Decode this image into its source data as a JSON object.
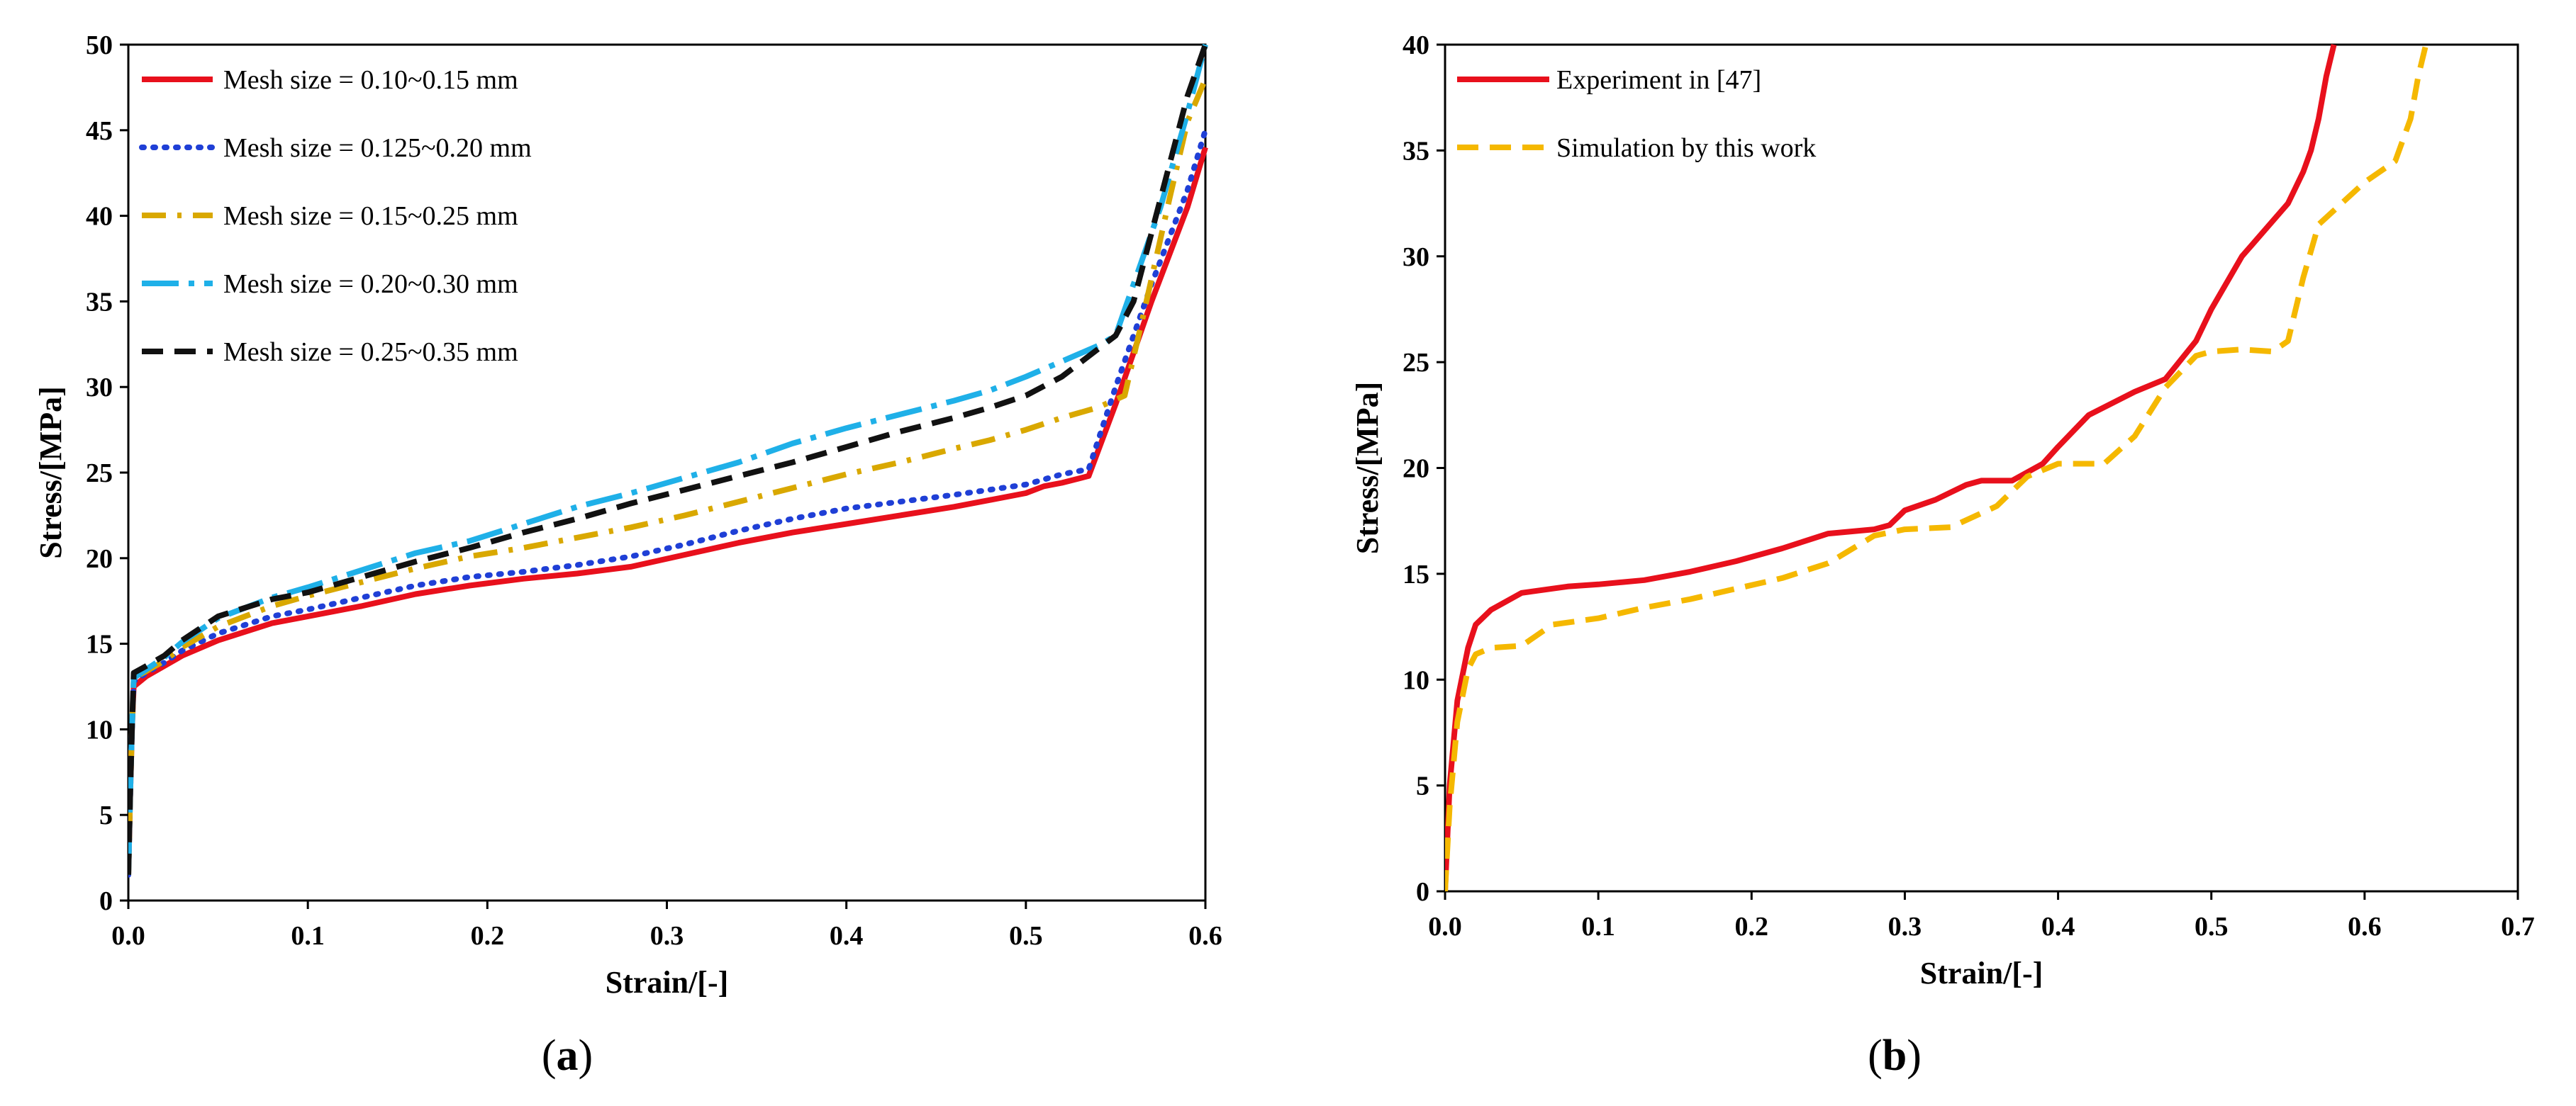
{
  "chart_data": [
    {
      "type": "line",
      "panel_label": "a",
      "caption_open": "(",
      "caption_close": ")",
      "xlabel": "Strain/[-]",
      "ylabel": "Stress/[MPa]",
      "xlim": [
        0,
        0.6
      ],
      "ylim": [
        0,
        50
      ],
      "xticks": [
        "0.0",
        "0.1",
        "0.2",
        "0.3",
        "0.4",
        "0.5",
        "0.6"
      ],
      "yticks": [
        "0",
        "5",
        "10",
        "15",
        "20",
        "25",
        "30",
        "35",
        "40",
        "45",
        "50"
      ],
      "legend_position": "top-left",
      "grid": false,
      "series": [
        {
          "name": "Mesh size = 0.10~0.15 mm",
          "color": "#e8101c",
          "style": "solid",
          "x": [
            0,
            0.001,
            0.002,
            0.003,
            0.01,
            0.02,
            0.03,
            0.05,
            0.08,
            0.1,
            0.13,
            0.16,
            0.19,
            0.22,
            0.25,
            0.28,
            0.31,
            0.34,
            0.37,
            0.4,
            0.43,
            0.46,
            0.48,
            0.5,
            0.51,
            0.52,
            0.535,
            0.55,
            0.57,
            0.59,
            0.6
          ],
          "y": [
            1.5,
            6,
            10,
            12.5,
            13.1,
            13.7,
            14.3,
            15.2,
            16.2,
            16.6,
            17.2,
            17.9,
            18.4,
            18.8,
            19.1,
            19.5,
            20.2,
            20.9,
            21.5,
            22.0,
            22.5,
            23.0,
            23.4,
            23.8,
            24.2,
            24.4,
            24.8,
            29,
            35,
            40.5,
            44
          ]
        },
        {
          "name": "Mesh size = 0.125~0.20 mm",
          "color": "#1f3fd6",
          "style": "dotted",
          "x": [
            0,
            0.001,
            0.002,
            0.003,
            0.01,
            0.02,
            0.03,
            0.05,
            0.08,
            0.1,
            0.13,
            0.16,
            0.19,
            0.22,
            0.25,
            0.28,
            0.31,
            0.34,
            0.37,
            0.4,
            0.43,
            0.46,
            0.48,
            0.5,
            0.51,
            0.52,
            0.535,
            0.55,
            0.57,
            0.59,
            0.6
          ],
          "y": [
            1.5,
            6,
            10,
            12.8,
            13.3,
            13.9,
            14.6,
            15.6,
            16.6,
            17.0,
            17.7,
            18.4,
            18.9,
            19.2,
            19.6,
            20.1,
            20.8,
            21.6,
            22.3,
            22.9,
            23.3,
            23.7,
            24.0,
            24.3,
            24.6,
            24.9,
            25.2,
            30,
            36,
            41.5,
            45
          ]
        },
        {
          "name": "Mesh size = 0.15~0.25 mm",
          "color": "#d9a800",
          "style": "dash-dot",
          "x": [
            0,
            0.001,
            0.002,
            0.003,
            0.01,
            0.02,
            0.03,
            0.05,
            0.08,
            0.1,
            0.13,
            0.16,
            0.19,
            0.22,
            0.25,
            0.28,
            0.31,
            0.34,
            0.37,
            0.4,
            0.43,
            0.46,
            0.48,
            0.5,
            0.52,
            0.54,
            0.555,
            0.565,
            0.58,
            0.59,
            0.6
          ],
          "y": [
            1.5,
            6,
            10,
            13.0,
            13.4,
            14.0,
            14.8,
            16.0,
            17.2,
            17.8,
            18.6,
            19.4,
            20.1,
            20.6,
            21.2,
            21.8,
            22.5,
            23.3,
            24.1,
            24.9,
            25.6,
            26.4,
            26.9,
            27.5,
            28.2,
            28.8,
            29.5,
            34,
            41,
            45.5,
            48
          ]
        },
        {
          "name": "Mesh size = 0.20~0.30 mm",
          "color": "#1fb0e8",
          "style": "long-dash-dot",
          "x": [
            0,
            0.001,
            0.002,
            0.003,
            0.01,
            0.02,
            0.03,
            0.05,
            0.08,
            0.1,
            0.13,
            0.16,
            0.19,
            0.22,
            0.25,
            0.28,
            0.31,
            0.34,
            0.37,
            0.4,
            0.43,
            0.46,
            0.48,
            0.5,
            0.52,
            0.54,
            0.55,
            0.56,
            0.575,
            0.59,
            0.6
          ],
          "y": [
            1.5,
            6,
            10,
            13.0,
            13.5,
            14.2,
            15.1,
            16.5,
            17.7,
            18.3,
            19.3,
            20.3,
            21.0,
            22.0,
            23.0,
            23.8,
            24.7,
            25.6,
            26.7,
            27.6,
            28.4,
            29.2,
            29.8,
            30.6,
            31.5,
            32.4,
            33.0,
            36,
            40.5,
            46,
            50
          ]
        },
        {
          "name": "Mesh size = 0.25~0.35 mm",
          "color": "#111111",
          "style": "dashed",
          "x": [
            0,
            0.001,
            0.002,
            0.003,
            0.01,
            0.02,
            0.03,
            0.05,
            0.08,
            0.1,
            0.13,
            0.16,
            0.19,
            0.22,
            0.25,
            0.28,
            0.31,
            0.34,
            0.37,
            0.4,
            0.43,
            0.46,
            0.48,
            0.5,
            0.52,
            0.54,
            0.55,
            0.56,
            0.575,
            0.59,
            0.6
          ],
          "y": [
            1.5,
            6,
            10,
            13.3,
            13.7,
            14.3,
            15.2,
            16.6,
            17.6,
            18.0,
            18.9,
            19.8,
            20.6,
            21.5,
            22.3,
            23.2,
            24.0,
            24.8,
            25.6,
            26.5,
            27.4,
            28.2,
            28.8,
            29.5,
            30.6,
            32.2,
            33.0,
            35,
            41,
            47,
            50
          ]
        }
      ]
    },
    {
      "type": "line",
      "panel_label": "b",
      "caption_open": "(",
      "caption_close": ")",
      "xlabel": "Strain/[-]",
      "ylabel": "Stress/[MPa]",
      "xlim": [
        0,
        0.7
      ],
      "ylim": [
        0,
        40
      ],
      "xticks": [
        "0.0",
        "0.1",
        "0.2",
        "0.3",
        "0.4",
        "0.5",
        "0.6",
        "0.7"
      ],
      "yticks": [
        "0",
        "5",
        "10",
        "15",
        "20",
        "25",
        "30",
        "35",
        "40"
      ],
      "legend_position": "top-left",
      "grid": false,
      "series": [
        {
          "name": "Experiment in [47]",
          "color": "#e8101c",
          "style": "solid",
          "x": [
            0,
            0.003,
            0.008,
            0.015,
            0.02,
            0.03,
            0.05,
            0.08,
            0.1,
            0.13,
            0.16,
            0.19,
            0.22,
            0.25,
            0.28,
            0.29,
            0.3,
            0.32,
            0.34,
            0.35,
            0.37,
            0.39,
            0.4,
            0.42,
            0.45,
            0.47,
            0.49,
            0.5,
            0.52,
            0.55,
            0.56,
            0.565,
            0.57,
            0.575,
            0.58
          ],
          "y": [
            0,
            5,
            9,
            11.5,
            12.6,
            13.3,
            14.1,
            14.4,
            14.5,
            14.7,
            15.1,
            15.6,
            16.2,
            16.9,
            17.1,
            17.3,
            18.0,
            18.5,
            19.2,
            19.4,
            19.4,
            20.2,
            21.0,
            22.5,
            23.6,
            24.2,
            26.0,
            27.5,
            30.0,
            32.5,
            34.0,
            35.0,
            36.5,
            38.5,
            40
          ]
        },
        {
          "name": "Simulation by this work",
          "color": "#f5b800",
          "style": "dashed",
          "x": [
            0,
            0.003,
            0.008,
            0.015,
            0.02,
            0.03,
            0.05,
            0.07,
            0.1,
            0.13,
            0.16,
            0.19,
            0.22,
            0.25,
            0.28,
            0.3,
            0.33,
            0.36,
            0.38,
            0.4,
            0.43,
            0.45,
            0.47,
            0.49,
            0.5,
            0.52,
            0.54,
            0.55,
            0.56,
            0.57,
            0.6,
            0.62,
            0.63,
            0.635,
            0.64
          ],
          "y": [
            0,
            4,
            8,
            10.5,
            11.2,
            11.5,
            11.6,
            12.6,
            12.9,
            13.4,
            13.8,
            14.3,
            14.8,
            15.5,
            16.8,
            17.1,
            17.2,
            18.2,
            19.6,
            20.2,
            20.2,
            21.5,
            23.8,
            25.3,
            25.5,
            25.6,
            25.5,
            26.0,
            29.0,
            31.5,
            33.5,
            34.5,
            36.5,
            38.5,
            40
          ]
        }
      ]
    }
  ]
}
